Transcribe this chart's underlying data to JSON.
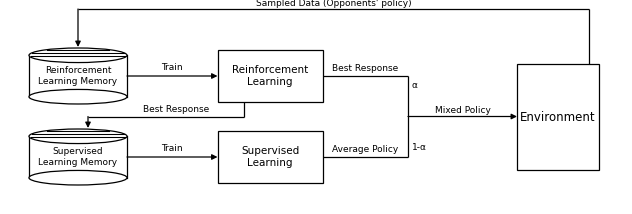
{
  "bg_color": "#ffffff",
  "line_color": "#000000",
  "title_text": "Sampled Data (Opponents' policy)",
  "rl_memory_label": "Reinforcement\nLearning Memory",
  "sl_memory_label": "Supervised\nLearning Memory",
  "rl_box_label": "Reinforcement\nLearning",
  "sl_box_label": "Supervised\nLearning",
  "env_box_label": "Environment",
  "train_label_rl": "Train",
  "train_label_sl": "Train",
  "best_response_top": "Best Response",
  "best_response_bottom": "Best Response",
  "avg_policy_label": "Average Policy",
  "mixed_policy_label": "Mixed Policy",
  "alpha_label": "α",
  "one_minus_alpha_label": "1-α"
}
